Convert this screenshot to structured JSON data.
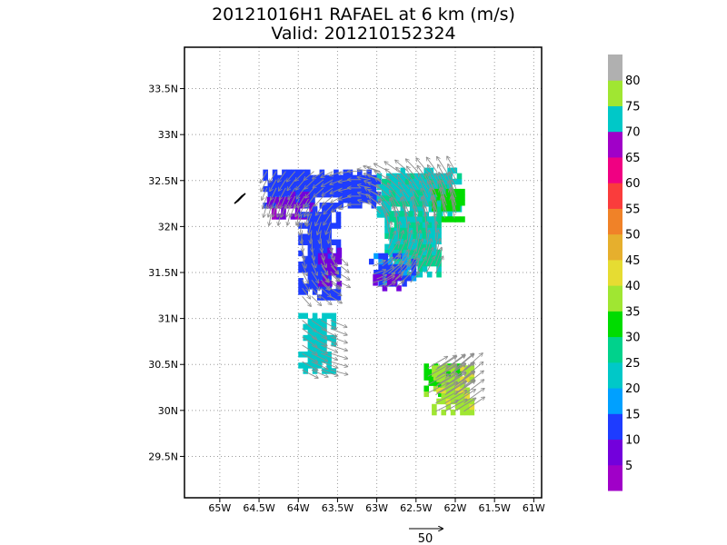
{
  "chart_data": {
    "type": "heatmap",
    "title": "20121016H1 RAFAEL at 6 km (m/s)",
    "subtitle": "Valid: 201210152324",
    "xlim": [
      -65.45,
      -60.9
    ],
    "ylim": [
      29.05,
      33.95
    ],
    "x_ticks": [
      {
        "value": -65.0,
        "label": "65W"
      },
      {
        "value": -64.5,
        "label": "64.5W"
      },
      {
        "value": -64.0,
        "label": "64W"
      },
      {
        "value": -63.5,
        "label": "63.5W"
      },
      {
        "value": -63.0,
        "label": "63W"
      },
      {
        "value": -62.5,
        "label": "62.5W"
      },
      {
        "value": -62.0,
        "label": "62W"
      },
      {
        "value": -61.5,
        "label": "61.5W"
      },
      {
        "value": -61.0,
        "label": "61W"
      }
    ],
    "y_ticks": [
      {
        "value": 29.5,
        "label": "29.5N"
      },
      {
        "value": 30.0,
        "label": "30N"
      },
      {
        "value": 30.5,
        "label": "30.5N"
      },
      {
        "value": 31.0,
        "label": "31N"
      },
      {
        "value": 31.5,
        "label": "31.5N"
      },
      {
        "value": 32.0,
        "label": "32N"
      },
      {
        "value": 32.5,
        "label": "32.5N"
      },
      {
        "value": 33.0,
        "label": "33N"
      },
      {
        "value": 33.5,
        "label": "33.5N"
      }
    ],
    "grid": true,
    "colorbar": {
      "labels": [
        "5",
        "10",
        "15",
        "20",
        "25",
        "30",
        "35",
        "40",
        "45",
        "50",
        "55",
        "60",
        "65",
        "70",
        "75",
        "80"
      ],
      "colors": [
        "#a000c8",
        "#7300dc",
        "#1e3cff",
        "#00a0ff",
        "#00c8c8",
        "#00d28c",
        "#00dc00",
        "#a0e632",
        "#e6dc32",
        "#e6af2d",
        "#f08228",
        "#fa3c3c",
        "#f00082",
        "#a000c8",
        "#00c8c8",
        "#a0e632",
        "#b0b0b0"
      ]
    },
    "regions": [
      {
        "name": "north-arc",
        "value": 13,
        "lon": [
          -64.45,
          -62.95
        ],
        "lat": [
          32.2,
          32.62
        ]
      },
      {
        "name": "north-purple",
        "value": 6,
        "lon": [
          -64.4,
          -63.85
        ],
        "lat": [
          32.08,
          32.35
        ]
      },
      {
        "name": "west-band",
        "value": 13,
        "lon": [
          -64.0,
          -63.5
        ],
        "lat": [
          31.2,
          32.2
        ]
      },
      {
        "name": "inner-purple",
        "value": 7,
        "lon": [
          -63.75,
          -63.45
        ],
        "lat": [
          31.35,
          31.72
        ]
      },
      {
        "name": "northeast",
        "value": 24,
        "lon": [
          -63.0,
          -61.95
        ],
        "lat": [
          32.1,
          32.62
        ]
      },
      {
        "name": "northeast-green",
        "value": 32,
        "lon": [
          -62.3,
          -61.9
        ],
        "lat": [
          32.05,
          32.4
        ]
      },
      {
        "name": "east-arc",
        "value": 25,
        "lon": [
          -62.9,
          -62.2
        ],
        "lat": [
          31.45,
          32.15
        ]
      },
      {
        "name": "south-blue",
        "value": 14,
        "lon": [
          -63.1,
          -62.55
        ],
        "lat": [
          31.35,
          31.65
        ]
      },
      {
        "name": "south-purple",
        "value": 7,
        "lon": [
          -63.05,
          -62.7
        ],
        "lat": [
          31.3,
          31.45
        ]
      },
      {
        "name": "southwest-cyan",
        "value": 23,
        "lon": [
          -64.0,
          -63.55
        ],
        "lat": [
          30.4,
          31.05
        ]
      },
      {
        "name": "southeast-green",
        "value": 34,
        "lon": [
          -62.4,
          -61.95
        ],
        "lat": [
          30.15,
          30.5
        ]
      },
      {
        "name": "southeast-lime",
        "value": 39,
        "lon": [
          -62.3,
          -61.8
        ],
        "lat": [
          29.95,
          30.45
        ]
      }
    ],
    "vector_scale_label": "50"
  }
}
